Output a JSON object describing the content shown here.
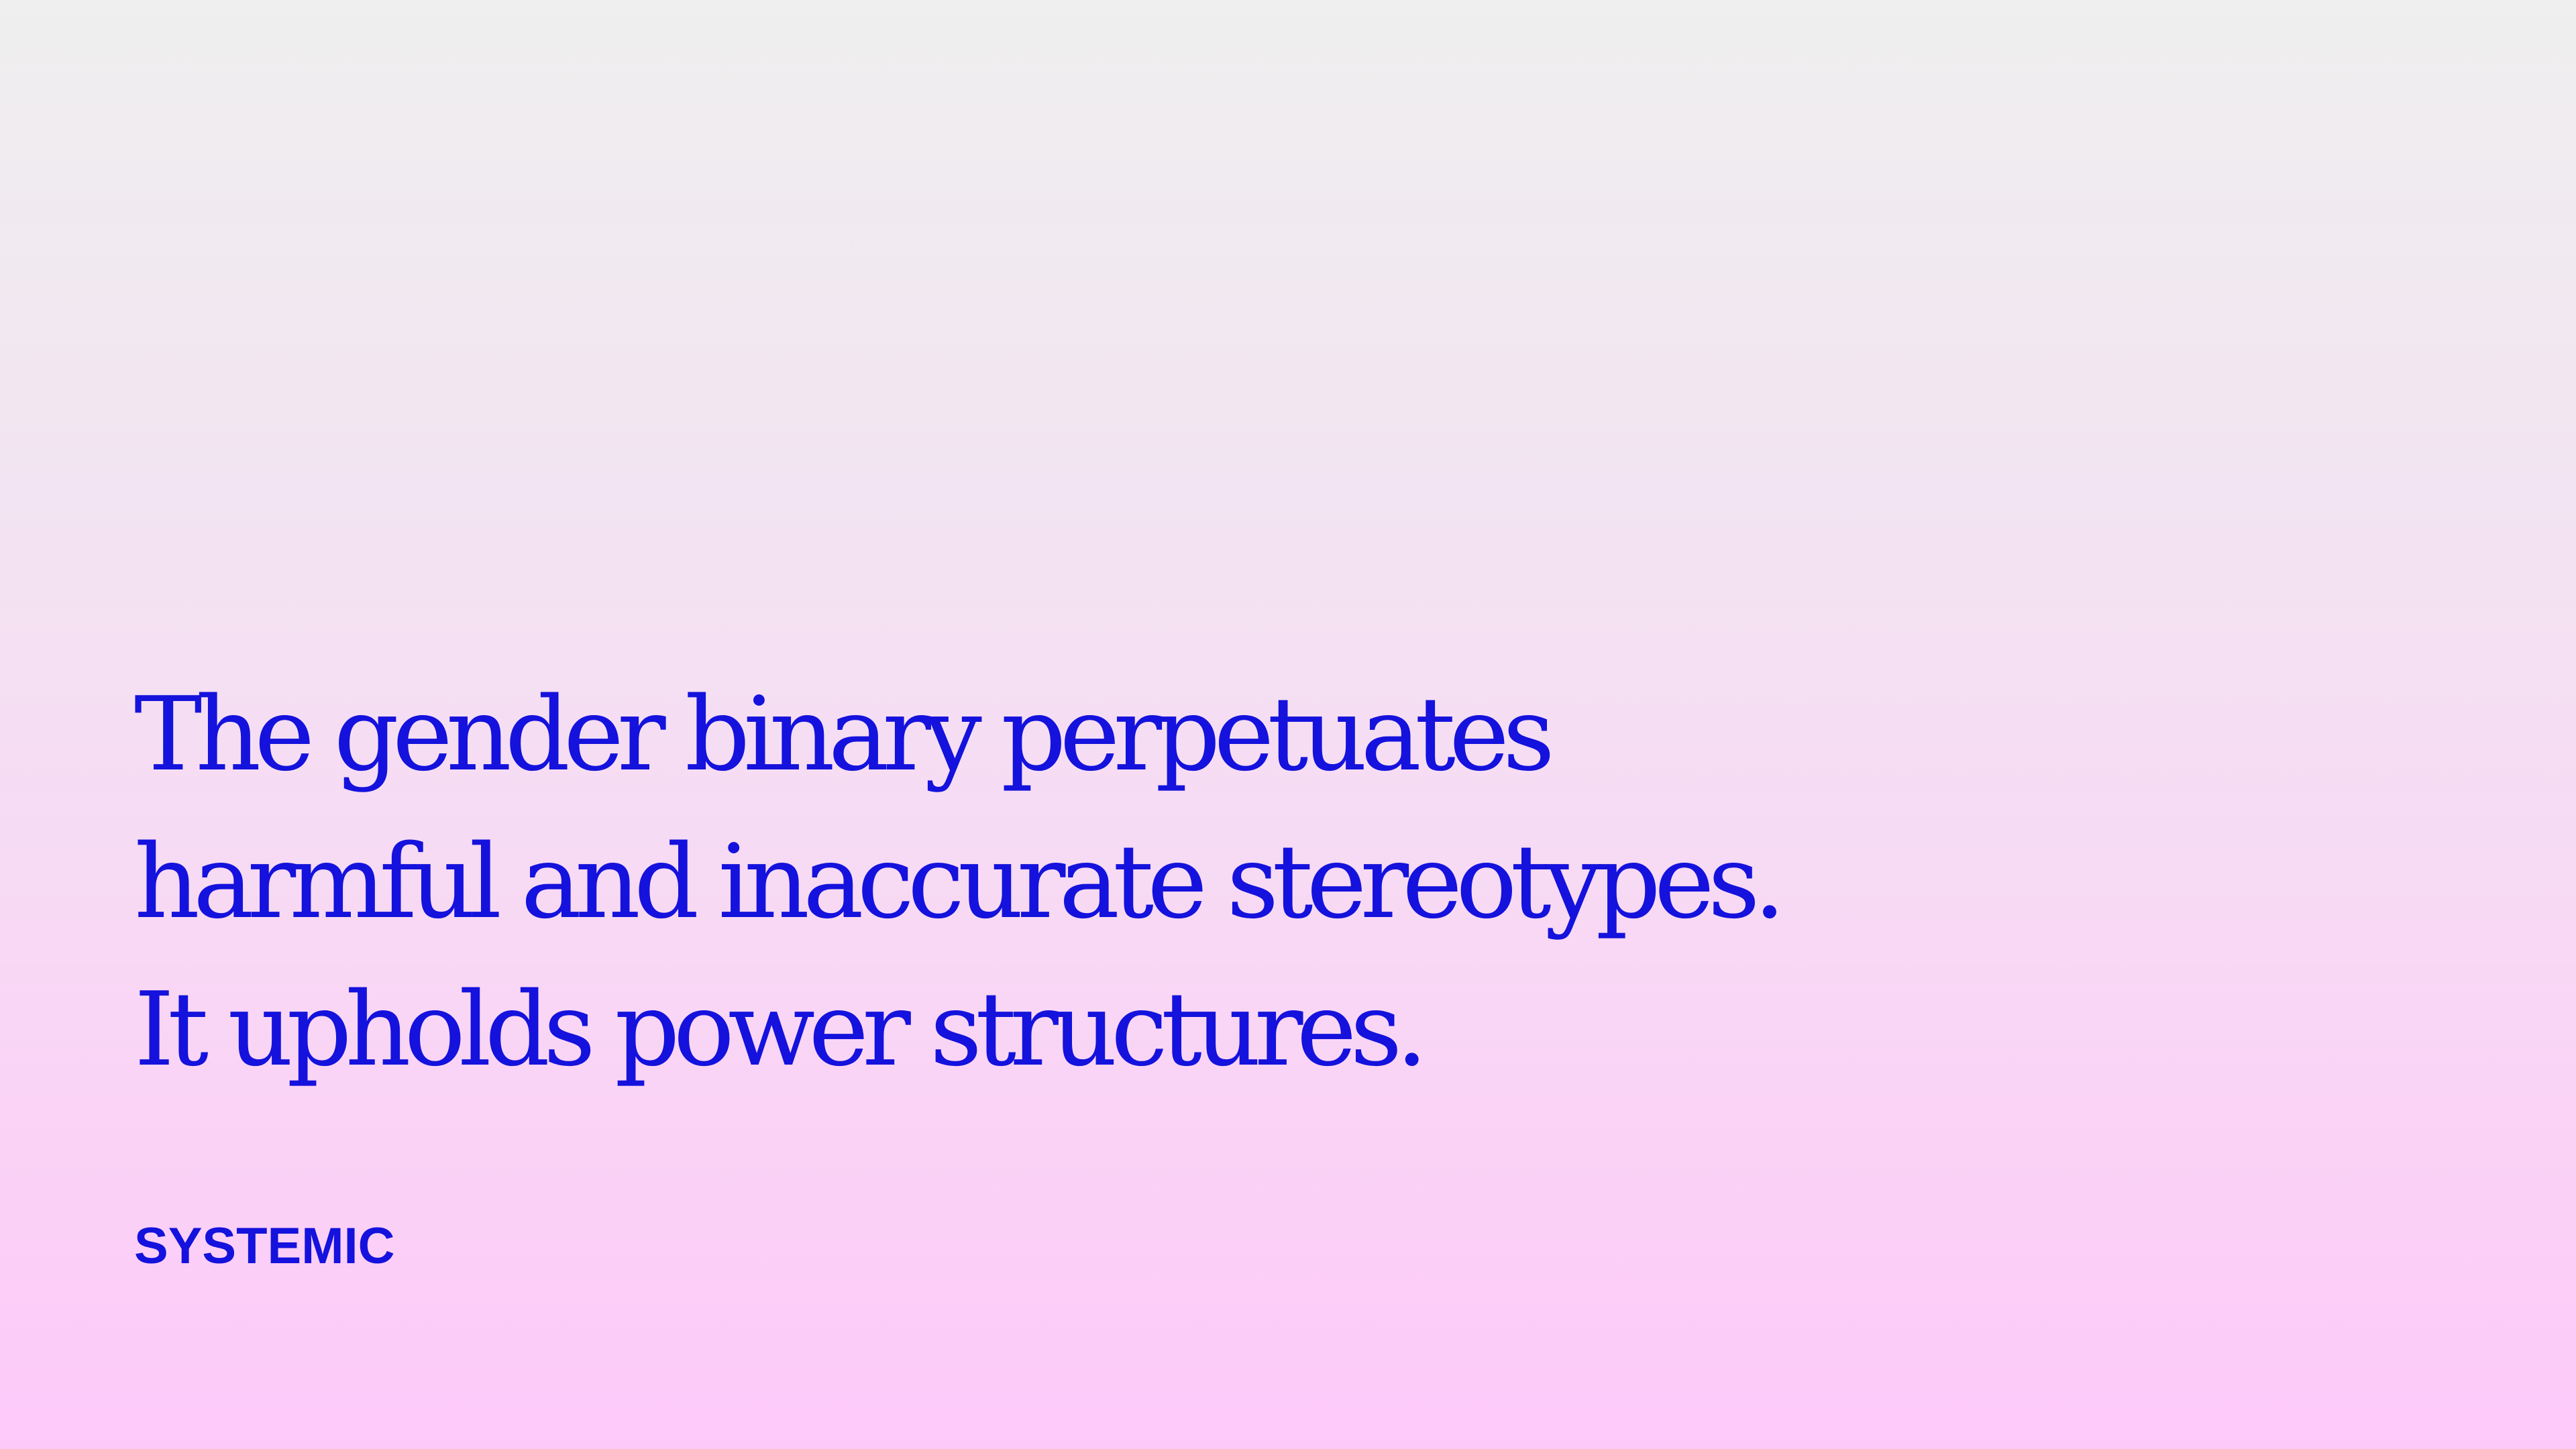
{
  "slide": {
    "statement_lines": [
      "The gender binary perpetuates",
      "harmful and inaccurate stereotypes.",
      "It upholds power structures."
    ],
    "tag": "SYSTEMIC"
  },
  "colors": {
    "text": "#1412dc",
    "background_top": "#efefef",
    "background_bottom": "#fdc9f9"
  }
}
